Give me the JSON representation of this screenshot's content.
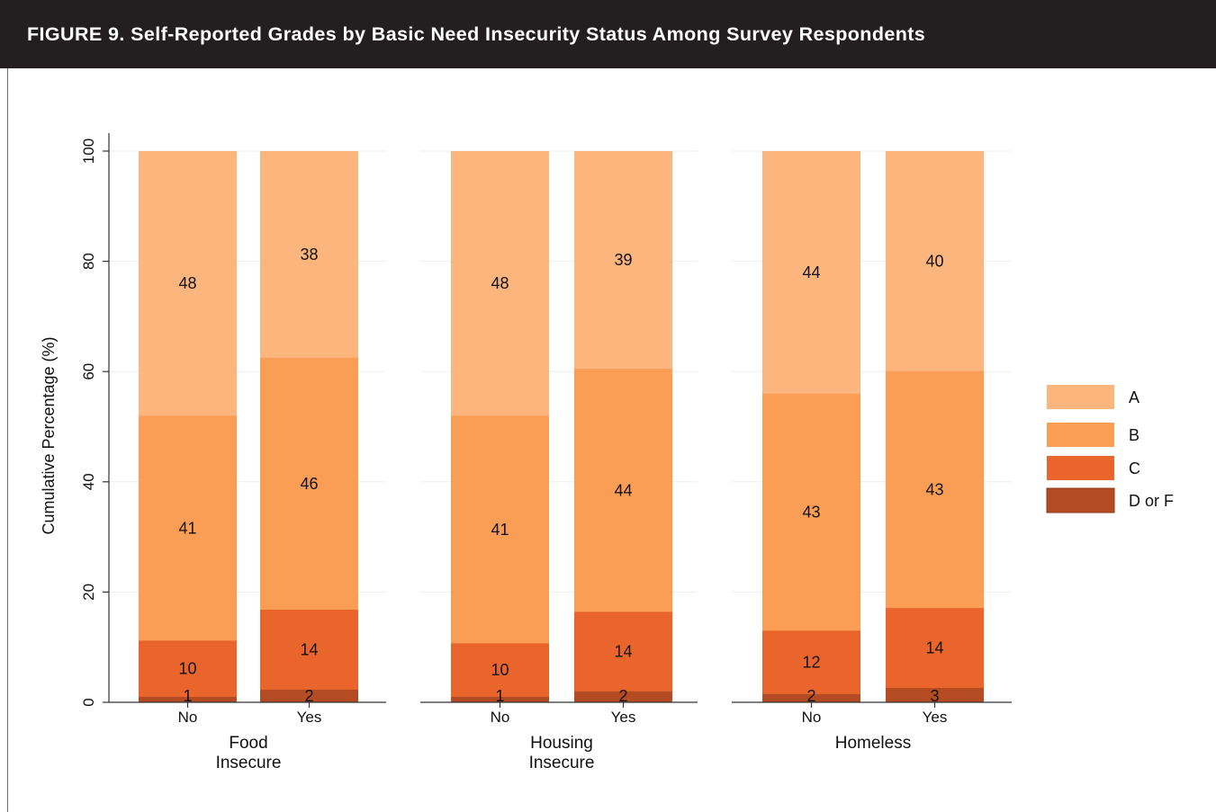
{
  "header": {
    "title": "FIGURE 9. Self-Reported Grades by Basic Need Insecurity Status Among Survey Respondents"
  },
  "colors": {
    "A": "#fcb57c",
    "B": "#fa9d55",
    "C": "#e9652b",
    "D or F": "#b44b22",
    "banner": "#231f20",
    "grid": "#eeeeee"
  },
  "chart_data": {
    "type": "bar",
    "stacked": true,
    "ylabel": "Cumulative Percentage (%)",
    "ylim": [
      0,
      100
    ],
    "yticks": [
      0,
      20,
      40,
      60,
      80,
      100
    ],
    "grid": true,
    "legend_position": "right",
    "legend": [
      "A",
      "B",
      "C",
      "D or F"
    ],
    "panels": [
      {
        "label": "Food Insecure",
        "label_lines": [
          "Food",
          "Insecure"
        ],
        "categories": [
          "No",
          "Yes"
        ],
        "series": [
          {
            "name": "D or F",
            "values": [
              1,
              2
            ],
            "labels": [
              "1",
              "2"
            ],
            "tops": [
              1.0,
              2.3
            ]
          },
          {
            "name": "C",
            "values": [
              10,
              14
            ],
            "labels": [
              "10",
              "14"
            ],
            "tops": [
              11.2,
              16.8
            ]
          },
          {
            "name": "B",
            "values": [
              41,
              46
            ],
            "labels": [
              "41",
              "46"
            ],
            "tops": [
              52.0,
              62.5
            ]
          },
          {
            "name": "A",
            "values": [
              48,
              38
            ],
            "labels": [
              "48",
              "38"
            ],
            "tops": [
              100,
              100
            ]
          }
        ]
      },
      {
        "label": "Housing Insecure",
        "label_lines": [
          "Housing",
          "Insecure"
        ],
        "categories": [
          "No",
          "Yes"
        ],
        "series": [
          {
            "name": "D or F",
            "values": [
              1,
              2
            ],
            "labels": [
              "1",
              "2"
            ],
            "tops": [
              1.0,
              2.0
            ]
          },
          {
            "name": "C",
            "values": [
              10,
              14
            ],
            "labels": [
              "10",
              "14"
            ],
            "tops": [
              10.7,
              16.4
            ]
          },
          {
            "name": "B",
            "values": [
              41,
              44
            ],
            "labels": [
              "41",
              "44"
            ],
            "tops": [
              52.0,
              60.5
            ]
          },
          {
            "name": "A",
            "values": [
              48,
              39
            ],
            "labels": [
              "48",
              "39"
            ],
            "tops": [
              100,
              100
            ]
          }
        ]
      },
      {
        "label": "Homeless",
        "label_lines": [
          "Homeless"
        ],
        "categories": [
          "No",
          "Yes"
        ],
        "series": [
          {
            "name": "D or F",
            "values": [
              2,
              3
            ],
            "labels": [
              "2",
              "3"
            ],
            "tops": [
              1.5,
              2.6
            ]
          },
          {
            "name": "C",
            "values": [
              12,
              14
            ],
            "labels": [
              "12",
              "14"
            ],
            "tops": [
              13.0,
              17.1
            ]
          },
          {
            "name": "B",
            "values": [
              43,
              43
            ],
            "labels": [
              "43",
              "43"
            ],
            "tops": [
              56.0,
              60.1
            ]
          },
          {
            "name": "A",
            "values": [
              44,
              40
            ],
            "labels": [
              "44",
              "40"
            ],
            "tops": [
              100,
              100
            ]
          }
        ]
      }
    ]
  }
}
